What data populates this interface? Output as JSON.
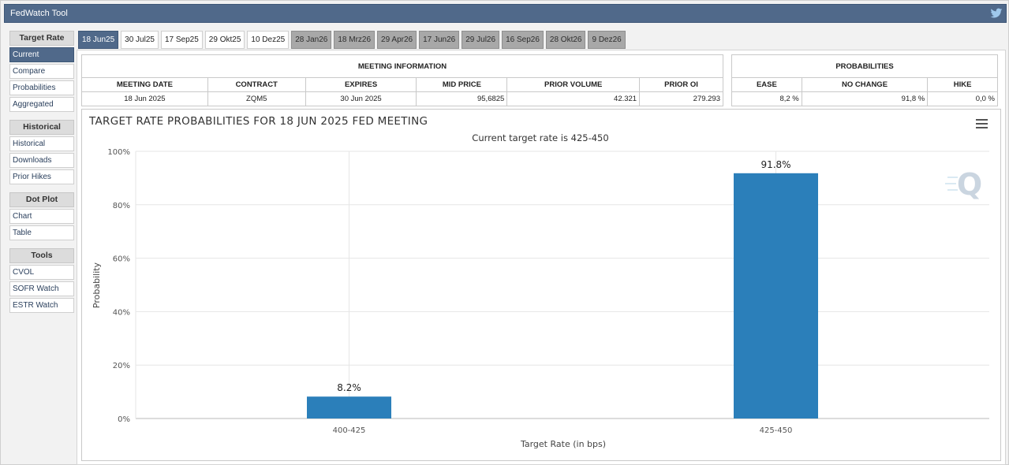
{
  "app": {
    "title": "FedWatch Tool"
  },
  "sidebar": {
    "groups": [
      {
        "header": "Target Rate",
        "items": [
          {
            "label": "Current",
            "active": true
          },
          {
            "label": "Compare",
            "active": false
          },
          {
            "label": "Probabilities",
            "active": false
          },
          {
            "label": "Aggregated",
            "active": false
          }
        ]
      },
      {
        "header": "Historical",
        "items": [
          {
            "label": "Historical",
            "active": false
          },
          {
            "label": "Downloads",
            "active": false
          },
          {
            "label": "Prior Hikes",
            "active": false
          }
        ]
      },
      {
        "header": "Dot Plot",
        "items": [
          {
            "label": "Chart",
            "active": false
          },
          {
            "label": "Table",
            "active": false
          }
        ]
      },
      {
        "header": "Tools",
        "items": [
          {
            "label": "CVOL",
            "active": false
          },
          {
            "label": "SOFR Watch",
            "active": false
          },
          {
            "label": "ESTR Watch",
            "active": false
          }
        ]
      }
    ]
  },
  "tabs": [
    {
      "label": "18 Jun25",
      "state": "active"
    },
    {
      "label": "30 Jul25",
      "state": "normal"
    },
    {
      "label": "17 Sep25",
      "state": "normal"
    },
    {
      "label": "29 Okt25",
      "state": "normal"
    },
    {
      "label": "10 Dez25",
      "state": "normal"
    },
    {
      "label": "28 Jan26",
      "state": "gray"
    },
    {
      "label": "18 Mrz26",
      "state": "gray"
    },
    {
      "label": "29 Apr26",
      "state": "gray"
    },
    {
      "label": "17 Jun26",
      "state": "gray"
    },
    {
      "label": "29 Jul26",
      "state": "gray"
    },
    {
      "label": "16 Sep26",
      "state": "gray"
    },
    {
      "label": "28 Okt26",
      "state": "gray"
    },
    {
      "label": "9 Dez26",
      "state": "gray"
    }
  ],
  "meeting_info": {
    "title": "MEETING INFORMATION",
    "columns": [
      "MEETING DATE",
      "CONTRACT",
      "EXPIRES",
      "MID PRICE",
      "PRIOR VOLUME",
      "PRIOR OI"
    ],
    "values": [
      "18 Jun 2025",
      "ZQM5",
      "30 Jun 2025",
      "95,6825",
      "42.321",
      "279.293"
    ]
  },
  "probabilities": {
    "title": "PROBABILITIES",
    "columns": [
      "EASE",
      "NO CHANGE",
      "HIKE"
    ],
    "values": [
      "8,2 %",
      "91,8 %",
      "0,0 %"
    ]
  },
  "chart_data": {
    "type": "bar",
    "title": "TARGET RATE PROBABILITIES FOR 18 JUN 2025 FED MEETING",
    "subtitle": "Current target rate is 425-450",
    "xlabel": "Target Rate (in bps)",
    "ylabel": "Probability",
    "categories": [
      "400-425",
      "425-450"
    ],
    "values": [
      8.2,
      91.8
    ],
    "data_labels": [
      "8.2%",
      "91.8%"
    ],
    "ylim": [
      0,
      100
    ],
    "yticks": [
      "0%",
      "20%",
      "40%",
      "60%",
      "80%",
      "100%"
    ],
    "ytick_values": [
      0,
      20,
      40,
      60,
      80,
      100
    ],
    "grid": true,
    "bar_color": "#2b7fba"
  }
}
